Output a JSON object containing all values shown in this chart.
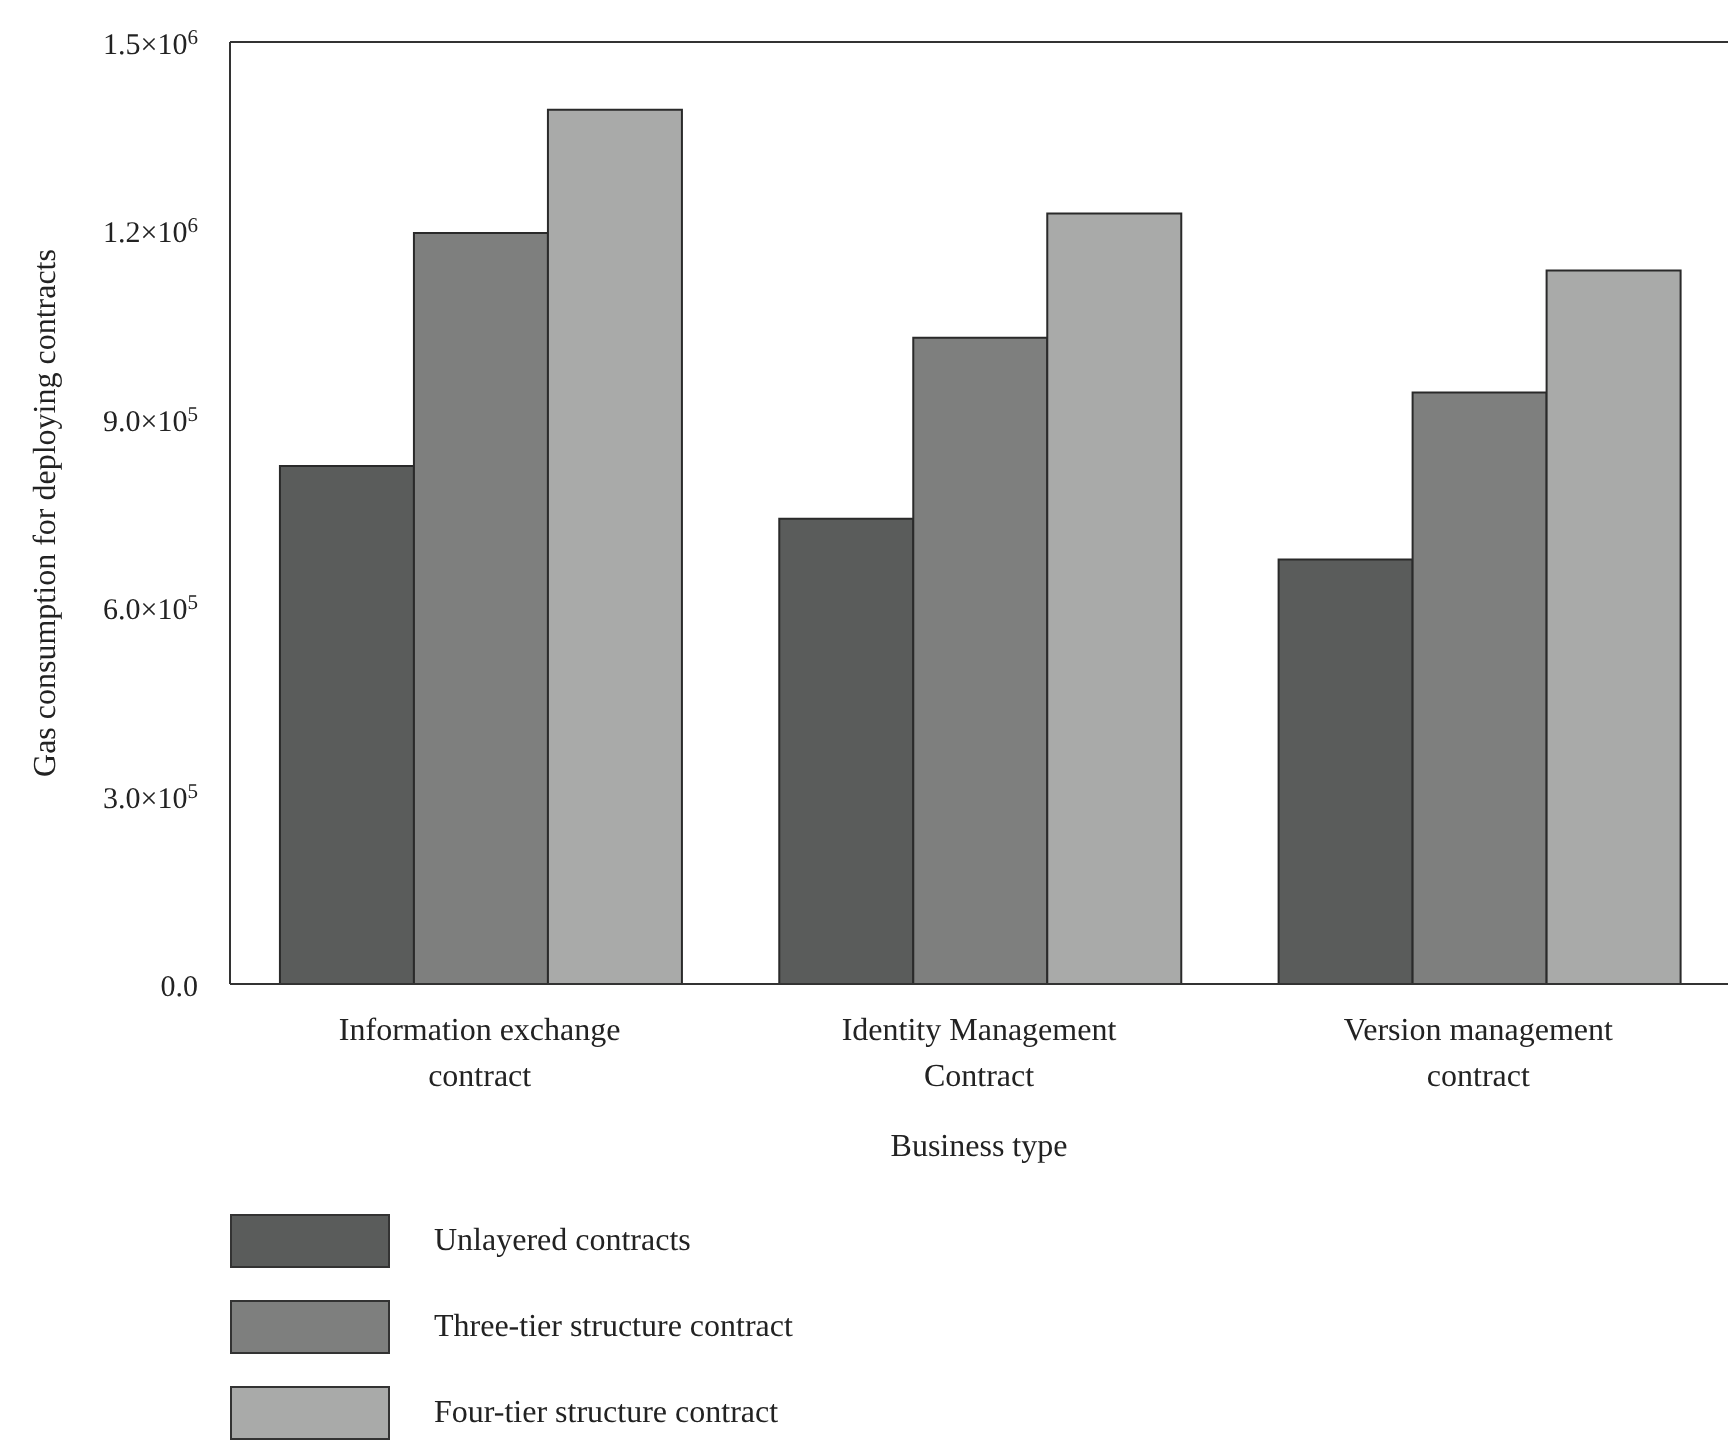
{
  "chart_data": {
    "type": "bar",
    "xlabel": "Business type",
    "ylabel": "Gas consumption for deploying contracts",
    "categories": [
      "Information exchange contract",
      "Identity Management Contract",
      "Version management contract"
    ],
    "series": [
      {
        "name": "Unlayered contracts",
        "color": "#5a5c5b",
        "values": [
          825000,
          741000,
          676000
        ]
      },
      {
        "name": "Three-tier structure contract",
        "color": "#7e7f7e",
        "values": [
          1196000,
          1029000,
          942000
        ]
      },
      {
        "name": "Four-tier structure contract",
        "color": "#a9aaa9",
        "values": [
          1392000,
          1227000,
          1136000
        ]
      }
    ],
    "ylim": [
      0,
      1500000
    ],
    "yticks": [
      {
        "value": 0,
        "label": "0.0"
      },
      {
        "value": 300000,
        "label": "3.0×10$^{5}$"
      },
      {
        "value": 600000,
        "label": "6.0×10$^{5}$"
      },
      {
        "value": 900000,
        "label": "9.0×10$^{5}$"
      },
      {
        "value": 1200000,
        "label": "1.2×10$^{6}$"
      },
      {
        "value": 1500000,
        "label": "1.5×10$^{6}$"
      }
    ],
    "legend": "bottom left",
    "grid": false
  }
}
